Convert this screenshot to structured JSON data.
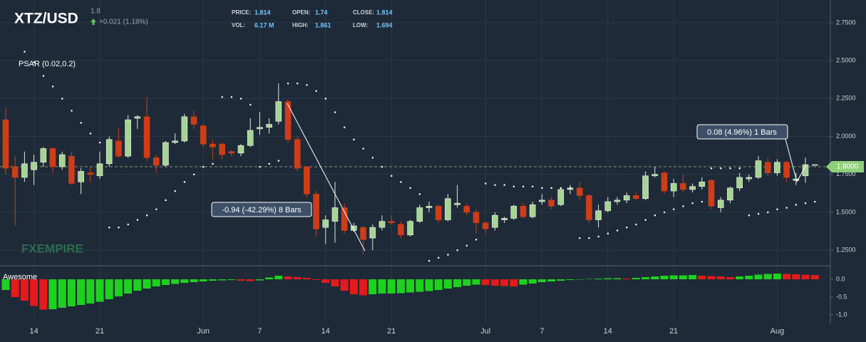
{
  "chart_data": [
    {
      "type": "candlestick",
      "title": "XTZ/USD",
      "subtitle": "1.8",
      "change": "+0.021 (1.18%)",
      "info": {
        "price_label": "PRICE:",
        "price": "1.814",
        "vol_label": "VOL:",
        "vol": "6.17 M",
        "open_label": "OPEN:",
        "open": "1.74",
        "high_label": "HIGH:",
        "high": "1.861",
        "close_label": "CLOSE:",
        "close": "1.814",
        "low_label": "LOW:",
        "low": "1.694"
      },
      "indicator": "PSAR (0.02,0.2)",
      "watermark": "FXEMPIRE",
      "annotations": [
        "-0.94 (-42.29%) 8 Bars",
        "0.08 (4.96%) 1 Bars"
      ],
      "last_price": {
        "value": 1.8,
        "label": "1.8000"
      },
      "colors": {
        "up": "#a6d493",
        "down": "#cf3d18",
        "psar": "#ffffff",
        "last": "#8fcf7a"
      },
      "categories": [
        null,
        null,
        null,
        "14",
        null,
        null,
        null,
        null,
        null,
        null,
        "21",
        null,
        null,
        null,
        null,
        null,
        null,
        null,
        null,
        null,
        null,
        "Jun",
        null,
        null,
        null,
        null,
        null,
        "7",
        null,
        null,
        null,
        null,
        null,
        null,
        "14",
        null,
        null,
        null,
        null,
        null,
        null,
        "21",
        null,
        null,
        null,
        null,
        null,
        null,
        null,
        null,
        null,
        "Jul",
        null,
        null,
        null,
        null,
        null,
        "7",
        null,
        null,
        null,
        null,
        null,
        null,
        "14",
        null,
        null,
        null,
        null,
        null,
        null,
        "21",
        null,
        null,
        null,
        null,
        null,
        null,
        null,
        null,
        null,
        null,
        "Aug",
        null,
        null,
        null,
        null
      ],
      "open": [
        2.11,
        1.8,
        1.73,
        1.78,
        1.83,
        1.92,
        1.8,
        1.87,
        1.7,
        1.76,
        1.74,
        1.82,
        1.97,
        1.87,
        2.12,
        2.13,
        1.86,
        1.81,
        1.96,
        1.97,
        2.13,
        2.07,
        1.95,
        1.95,
        1.9,
        1.89,
        1.94,
        2.05,
        2.06,
        2.1,
        2.23,
        1.98,
        1.8,
        1.62,
        1.4,
        1.44,
        1.53,
        1.38,
        1.4,
        1.33,
        1.4,
        1.44,
        1.42,
        1.35,
        1.44,
        1.53,
        1.54,
        1.45,
        1.55,
        1.54,
        1.5,
        1.43,
        1.4,
        1.45,
        1.46,
        1.54,
        1.47,
        1.57,
        1.58,
        1.55,
        1.65,
        1.66,
        1.61,
        1.45,
        1.51,
        1.57,
        1.58,
        1.61,
        1.59,
        1.74,
        1.76,
        1.64,
        1.69,
        1.65,
        1.67,
        1.71,
        1.53,
        1.58,
        1.66,
        1.72,
        1.73,
        1.83,
        1.76,
        1.83,
        1.71,
        1.74,
        1.814
      ],
      "high": [
        2.19,
        1.87,
        1.9,
        1.88,
        1.93,
        1.93,
        1.9,
        1.9,
        1.79,
        1.8,
        1.9,
        2.0,
        2.06,
        2.14,
        2.14,
        2.26,
        1.88,
        1.97,
        2.02,
        2.15,
        2.17,
        2.08,
        1.98,
        1.96,
        1.91,
        1.95,
        2.12,
        2.16,
        2.12,
        2.35,
        2.24,
        2.0,
        1.8,
        1.64,
        1.48,
        1.7,
        1.56,
        1.43,
        1.41,
        1.42,
        1.48,
        1.48,
        1.44,
        1.45,
        1.55,
        1.57,
        1.55,
        1.62,
        1.68,
        1.56,
        1.52,
        1.44,
        1.5,
        1.47,
        1.55,
        1.56,
        1.57,
        1.62,
        1.6,
        1.66,
        1.68,
        1.7,
        1.62,
        1.55,
        1.6,
        1.6,
        1.63,
        1.63,
        1.77,
        1.8,
        1.77,
        1.72,
        1.75,
        1.69,
        1.73,
        1.72,
        1.6,
        1.67,
        1.76,
        1.75,
        1.87,
        1.86,
        1.85,
        1.84,
        1.76,
        1.861,
        1.814
      ],
      "low": [
        1.75,
        1.41,
        1.7,
        1.68,
        1.8,
        1.76,
        1.78,
        1.68,
        1.62,
        1.7,
        1.72,
        1.8,
        1.86,
        1.86,
        2.05,
        1.84,
        1.76,
        1.8,
        1.95,
        1.96,
        2.05,
        1.93,
        1.85,
        1.85,
        1.87,
        1.87,
        1.93,
        2.01,
        2.02,
        2.08,
        1.96,
        1.77,
        1.6,
        1.34,
        1.29,
        1.3,
        1.36,
        1.37,
        1.22,
        1.25,
        1.38,
        1.42,
        1.33,
        1.34,
        1.43,
        1.5,
        1.43,
        1.44,
        1.53,
        1.48,
        1.36,
        1.36,
        1.38,
        1.43,
        1.45,
        1.46,
        1.46,
        1.55,
        1.52,
        1.54,
        1.62,
        1.58,
        1.43,
        1.4,
        1.5,
        1.55,
        1.56,
        1.58,
        1.58,
        1.73,
        1.62,
        1.6,
        1.63,
        1.63,
        1.65,
        1.52,
        1.5,
        1.56,
        1.64,
        1.7,
        1.72,
        1.74,
        1.74,
        1.7,
        1.68,
        1.694,
        1.814
      ],
      "close": [
        1.79,
        1.73,
        1.82,
        1.83,
        1.92,
        1.8,
        1.88,
        1.69,
        1.77,
        1.75,
        1.82,
        1.98,
        1.87,
        2.11,
        2.13,
        1.86,
        1.81,
        1.96,
        1.97,
        2.13,
        2.08,
        1.95,
        1.93,
        1.88,
        1.89,
        1.94,
        2.04,
        2.06,
        2.08,
        2.23,
        1.98,
        1.79,
        1.62,
        1.39,
        1.45,
        1.53,
        1.38,
        1.41,
        1.32,
        1.4,
        1.44,
        1.43,
        1.35,
        1.44,
        1.53,
        1.54,
        1.45,
        1.59,
        1.56,
        1.5,
        1.43,
        1.39,
        1.48,
        1.46,
        1.54,
        1.47,
        1.55,
        1.58,
        1.54,
        1.65,
        1.66,
        1.61,
        1.45,
        1.51,
        1.57,
        1.58,
        1.61,
        1.59,
        1.74,
        1.75,
        1.64,
        1.69,
        1.65,
        1.67,
        1.7,
        1.54,
        1.58,
        1.66,
        1.73,
        1.73,
        1.84,
        1.76,
        1.83,
        1.73,
        1.72,
        1.814,
        1.814
      ],
      "psar": [
        null,
        null,
        2.56,
        2.49,
        2.4,
        2.33,
        2.25,
        2.17,
        2.09,
        2.02,
        1.96,
        1.4,
        1.4,
        1.42,
        1.45,
        1.48,
        1.52,
        1.58,
        1.64,
        1.7,
        1.75,
        1.8,
        1.82,
        2.26,
        2.26,
        2.25,
        2.21,
        1.8,
        1.82,
        1.84,
        2.35,
        2.35,
        2.34,
        2.3,
        2.25,
        2.16,
        2.06,
        1.98,
        1.92,
        1.86,
        1.8,
        1.74,
        1.7,
        1.66,
        1.62,
        1.18,
        1.2,
        1.22,
        1.25,
        1.28,
        1.32,
        1.69,
        1.68,
        1.68,
        1.67,
        1.67,
        1.67,
        1.66,
        1.66,
        1.66,
        1.66,
        1.33,
        1.33,
        1.34,
        1.36,
        1.38,
        1.4,
        1.42,
        1.45,
        1.48,
        1.5,
        1.52,
        1.54,
        1.56,
        1.57,
        1.79,
        1.79,
        1.79,
        1.79,
        1.48,
        1.49,
        1.5,
        1.52,
        1.53,
        1.55,
        1.56,
        1.57
      ],
      "ylim": [
        1.147,
        2.9
      ],
      "yticks": [
        {
          "value": 1.25,
          "label": "1.2500"
        },
        {
          "value": 1.5,
          "label": "1.5000"
        },
        {
          "value": 1.75,
          "label": "1.7500"
        },
        {
          "value": 2.0,
          "label": "2.0000"
        },
        {
          "value": 2.25,
          "label": "2.2500"
        },
        {
          "value": 2.5,
          "label": "2.5000"
        },
        {
          "value": 2.75,
          "label": "2.7500"
        }
      ],
      "grid": true
    },
    {
      "type": "bar",
      "title": "Awesome",
      "colors": {
        "up": "#1ed11e",
        "down": "#e31b1b"
      },
      "values": [
        -0.3,
        -0.5,
        -0.6,
        -0.75,
        -0.85,
        -0.84,
        -0.8,
        -0.76,
        -0.72,
        -0.68,
        -0.63,
        -0.56,
        -0.48,
        -0.4,
        -0.32,
        -0.26,
        -0.2,
        -0.16,
        -0.13,
        -0.1,
        -0.08,
        -0.06,
        -0.04,
        -0.03,
        -0.02,
        -0.04,
        -0.05,
        -0.03,
        0.05,
        0.1,
        0.08,
        0.06,
        0.04,
        -0.02,
        -0.1,
        -0.2,
        -0.32,
        -0.42,
        -0.45,
        -0.42,
        -0.4,
        -0.4,
        -0.39,
        -0.37,
        -0.35,
        -0.33,
        -0.3,
        -0.26,
        -0.22,
        -0.18,
        -0.15,
        -0.16,
        -0.18,
        -0.19,
        -0.2,
        -0.15,
        -0.12,
        -0.08,
        -0.06,
        -0.04,
        -0.02,
        0.0,
        0.01,
        0.02,
        0.03,
        0.03,
        0.02,
        0.04,
        0.06,
        0.08,
        0.1,
        0.11,
        0.11,
        0.12,
        0.1,
        0.09,
        0.08,
        0.06,
        0.08,
        0.1,
        0.13,
        0.15,
        0.16,
        0.15,
        0.14,
        0.13,
        0.12
      ],
      "ylim": [
        -1.26,
        0.38
      ],
      "yticks": [
        {
          "value": 0,
          "label": "0.0"
        },
        -0.5,
        {
          "value": -1,
          "label": "-1.0"
        }
      ]
    }
  ]
}
